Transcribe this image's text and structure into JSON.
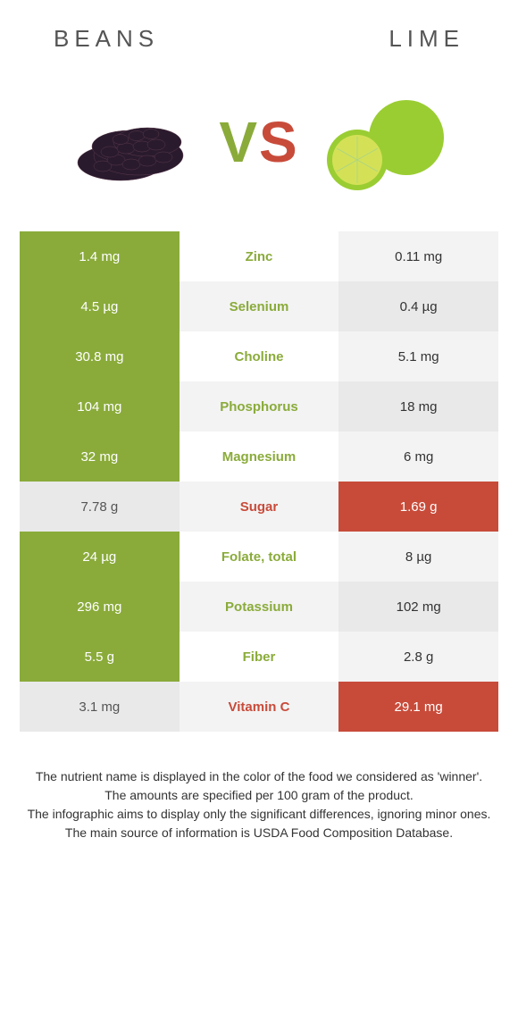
{
  "left_food": "Beans",
  "right_food": "Lime",
  "vs_v": "V",
  "vs_s": "S",
  "colors": {
    "beans": "#8aab3a",
    "lime": "#c84b3a",
    "right_stripe_a": "#f3f3f3",
    "right_stripe_b": "#e9e9e9"
  },
  "rows": [
    {
      "nutrient": "Zinc",
      "left": "1.4 mg",
      "right": "0.11 mg",
      "winner": "left"
    },
    {
      "nutrient": "Selenium",
      "left": "4.5 µg",
      "right": "0.4 µg",
      "winner": "left"
    },
    {
      "nutrient": "Choline",
      "left": "30.8 mg",
      "right": "5.1 mg",
      "winner": "left"
    },
    {
      "nutrient": "Phosphorus",
      "left": "104 mg",
      "right": "18 mg",
      "winner": "left"
    },
    {
      "nutrient": "Magnesium",
      "left": "32 mg",
      "right": "6 mg",
      "winner": "left"
    },
    {
      "nutrient": "Sugar",
      "left": "7.78 g",
      "right": "1.69 g",
      "winner": "right"
    },
    {
      "nutrient": "Folate, total",
      "left": "24 µg",
      "right": "8 µg",
      "winner": "left"
    },
    {
      "nutrient": "Potassium",
      "left": "296 mg",
      "right": "102 mg",
      "winner": "left"
    },
    {
      "nutrient": "Fiber",
      "left": "5.5 g",
      "right": "2.8 g",
      "winner": "left"
    },
    {
      "nutrient": "Vitamin C",
      "left": "3.1 mg",
      "right": "29.1 mg",
      "winner": "right"
    }
  ],
  "footnote_lines": [
    "The nutrient name is displayed in the color of the food we considered as 'winner'.",
    "The amounts are specified per 100 gram of the product.",
    "The infographic aims to display only the significant differences, ignoring minor ones.",
    "The main source of information is USDA Food Composition Database."
  ]
}
